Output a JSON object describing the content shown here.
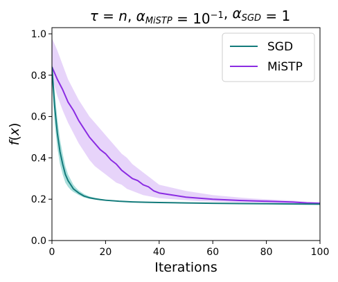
{
  "chart_data": {
    "type": "line",
    "title_parts": [
      {
        "text": "τ = ",
        "italic": true
      },
      {
        "text": "n",
        "italic": true
      },
      {
        "text": ", ",
        "italic": false
      },
      {
        "text": "α",
        "italic": true
      },
      {
        "text": "MiSTP",
        "italic": true,
        "sub": true
      },
      {
        "text": " = 10",
        "italic": false
      },
      {
        "text": "−1",
        "italic": false,
        "sup": true
      },
      {
        "text": ", ",
        "italic": false
      },
      {
        "text": "α",
        "italic": true
      },
      {
        "text": "SGD",
        "italic": true,
        "sub": true
      },
      {
        "text": " = 1",
        "italic": false
      }
    ],
    "xlabel": "Iterations",
    "ylabel": "f(x)",
    "xlim": [
      0,
      100
    ],
    "ylim": [
      0,
      1.03
    ],
    "xticks": [
      0,
      20,
      40,
      60,
      80,
      100
    ],
    "yticks": [
      0.0,
      0.2,
      0.4,
      0.6,
      0.8,
      1.0
    ],
    "ytick_labels": [
      "0.0",
      "0.2",
      "0.4",
      "0.6",
      "0.8",
      "1.0"
    ],
    "xtick_labels": [
      "0",
      "20",
      "40",
      "60",
      "80",
      "100"
    ],
    "grid": false,
    "legend_position": "top-right",
    "series": [
      {
        "name": "SGD",
        "color": "#127a7a",
        "band_color": "#3fb6b0",
        "x": [
          0,
          1,
          2,
          3,
          4,
          5,
          6,
          7,
          8,
          9,
          10,
          12,
          14,
          16,
          18,
          20,
          25,
          30,
          35,
          40,
          50,
          60,
          70,
          80,
          90,
          100
        ],
        "y": [
          0.84,
          0.65,
          0.52,
          0.43,
          0.37,
          0.32,
          0.29,
          0.27,
          0.25,
          0.24,
          0.23,
          0.215,
          0.207,
          0.202,
          0.198,
          0.195,
          0.19,
          0.187,
          0.185,
          0.184,
          0.182,
          0.18,
          0.179,
          0.178,
          0.177,
          0.176
        ],
        "y_low": [
          0.78,
          0.57,
          0.45,
          0.37,
          0.32,
          0.28,
          0.26,
          0.245,
          0.235,
          0.228,
          0.22,
          0.208,
          0.202,
          0.198,
          0.195,
          0.192,
          0.188,
          0.185,
          0.183,
          0.182,
          0.18,
          0.179,
          0.178,
          0.177,
          0.176,
          0.175
        ],
        "y_high": [
          0.87,
          0.72,
          0.59,
          0.49,
          0.42,
          0.36,
          0.32,
          0.295,
          0.27,
          0.255,
          0.242,
          0.225,
          0.213,
          0.207,
          0.202,
          0.198,
          0.192,
          0.189,
          0.187,
          0.186,
          0.184,
          0.182,
          0.181,
          0.18,
          0.179,
          0.178
        ]
      },
      {
        "name": "MiSTP",
        "color": "#8a2be2",
        "band_color": "#c9a0f5",
        "x": [
          0,
          2,
          4,
          6,
          8,
          10,
          12,
          14,
          16,
          18,
          20,
          22,
          24,
          26,
          28,
          30,
          32,
          34,
          36,
          38,
          40,
          45,
          50,
          55,
          60,
          65,
          70,
          75,
          80,
          85,
          90,
          95,
          100
        ],
        "y": [
          0.84,
          0.78,
          0.73,
          0.67,
          0.63,
          0.58,
          0.54,
          0.5,
          0.47,
          0.44,
          0.42,
          0.39,
          0.37,
          0.34,
          0.32,
          0.3,
          0.29,
          0.27,
          0.26,
          0.24,
          0.23,
          0.22,
          0.21,
          0.205,
          0.2,
          0.197,
          0.194,
          0.192,
          0.19,
          0.188,
          0.186,
          0.182,
          0.18
        ],
        "y_low": [
          0.79,
          0.7,
          0.63,
          0.57,
          0.52,
          0.47,
          0.43,
          0.39,
          0.36,
          0.34,
          0.32,
          0.3,
          0.28,
          0.27,
          0.25,
          0.24,
          0.23,
          0.22,
          0.215,
          0.21,
          0.205,
          0.2,
          0.195,
          0.19,
          0.188,
          0.186,
          0.184,
          0.183,
          0.182,
          0.181,
          0.18,
          0.178,
          0.177
        ],
        "y_high": [
          0.98,
          0.92,
          0.85,
          0.78,
          0.73,
          0.68,
          0.64,
          0.6,
          0.57,
          0.54,
          0.51,
          0.48,
          0.45,
          0.42,
          0.4,
          0.37,
          0.35,
          0.33,
          0.31,
          0.29,
          0.27,
          0.255,
          0.24,
          0.23,
          0.22,
          0.214,
          0.208,
          0.203,
          0.2,
          0.196,
          0.193,
          0.188,
          0.185
        ]
      }
    ]
  }
}
